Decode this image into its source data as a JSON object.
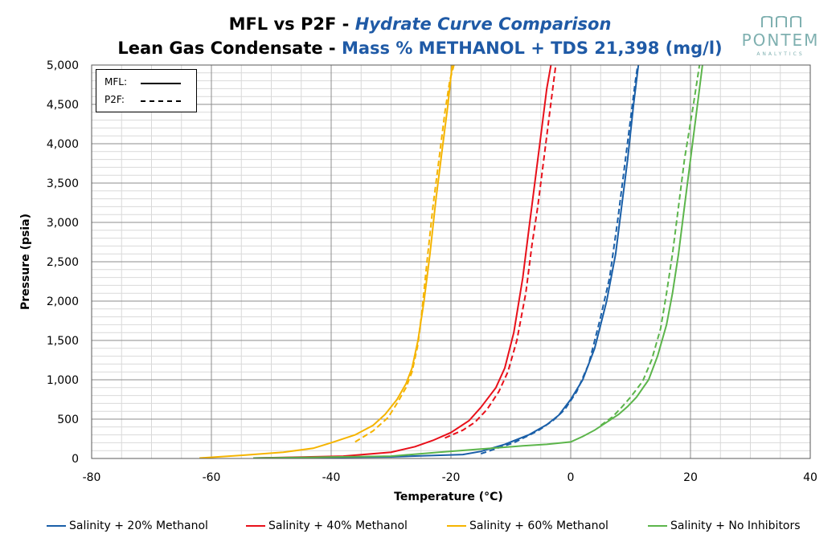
{
  "header": {
    "title_line1_part1": "MFL vs P2F - ",
    "title_line1_part2": "Hydrate Curve Comparison",
    "title_line2_part1": "Lean Gas Condensate - ",
    "title_line2_part2": "Mass % METHANOL + TDS 21,398 (mg/l)"
  },
  "logo": {
    "name": "PONTEM",
    "sub": "ANALYTICS",
    "color": "#7fb0b0"
  },
  "inset_legend": {
    "mfl_label": "MFL:",
    "p2f_label": "P2F:"
  },
  "colors": {
    "blue": "#1a5fa8",
    "red": "#e8101a",
    "yellow": "#f5b400",
    "green": "#5cb54b"
  },
  "chart_data": {
    "type": "line",
    "title": "MFL vs P2F - Hydrate Curve Comparison / Lean Gas Condensate - Mass % METHANOL + TDS 21,398 (mg/l)",
    "xlabel": "Temperature (°C)",
    "ylabel": "Pressure (psia)",
    "xlim": [
      -80,
      40
    ],
    "ylim": [
      0,
      5000
    ],
    "xticks": [
      -80,
      -60,
      -40,
      -20,
      0,
      20,
      40
    ],
    "yticks": [
      0,
      500,
      1000,
      1500,
      2000,
      2500,
      3000,
      3500,
      4000,
      4500,
      5000
    ],
    "xtick_labels": [
      "-80",
      "-60",
      "-40",
      "-20",
      "0",
      "20",
      "40"
    ],
    "ytick_labels": [
      "0",
      "500",
      "1,000",
      "1,500",
      "2,000",
      "2,500",
      "3,000",
      "3,500",
      "4,000",
      "4,500",
      "5,000"
    ],
    "grid": true,
    "legend_position": "bottom",
    "series": [
      {
        "name": "Salinity + 20% Methanol",
        "color": "#1a5fa8",
        "mfl": [
          [
            -53,
            5
          ],
          [
            -30,
            20
          ],
          [
            -18,
            50
          ],
          [
            -15,
            90
          ],
          [
            -11,
            180
          ],
          [
            -7,
            300
          ],
          [
            -4,
            430
          ],
          [
            -2,
            550
          ],
          [
            0,
            750
          ],
          [
            2,
            1000
          ],
          [
            4,
            1400
          ],
          [
            6,
            2000
          ],
          [
            7.5,
            2600
          ],
          [
            8.5,
            3200
          ],
          [
            9.5,
            3800
          ],
          [
            10.5,
            4500
          ],
          [
            11.3,
            5000
          ]
        ],
        "p2f": [
          [
            -15,
            60
          ],
          [
            -9.5,
            200
          ],
          [
            -5.5,
            350
          ],
          [
            -3,
            480
          ],
          [
            -1,
            620
          ],
          [
            1,
            850
          ],
          [
            3,
            1200
          ],
          [
            5,
            1800
          ],
          [
            6.5,
            2300
          ],
          [
            7.8,
            3000
          ],
          [
            8.8,
            3600
          ],
          [
            9.8,
            4200
          ],
          [
            10.8,
            4800
          ],
          [
            11.2,
            5000
          ]
        ]
      },
      {
        "name": "Salinity + 40% Methanol",
        "color": "#e8101a",
        "mfl": [
          [
            -53,
            5
          ],
          [
            -38,
            30
          ],
          [
            -30,
            80
          ],
          [
            -26,
            150
          ],
          [
            -23,
            230
          ],
          [
            -20,
            330
          ],
          [
            -17,
            480
          ],
          [
            -15,
            650
          ],
          [
            -12.5,
            900
          ],
          [
            -11,
            1150
          ],
          [
            -9.5,
            1600
          ],
          [
            -8,
            2300
          ],
          [
            -7,
            2900
          ],
          [
            -6,
            3500
          ],
          [
            -5,
            4100
          ],
          [
            -4,
            4700
          ],
          [
            -3.3,
            5000
          ]
        ],
        "p2f": [
          [
            -21,
            260
          ],
          [
            -18,
            360
          ],
          [
            -16,
            460
          ],
          [
            -14,
            620
          ],
          [
            -12,
            850
          ],
          [
            -10.5,
            1100
          ],
          [
            -9,
            1500
          ],
          [
            -7.5,
            2100
          ],
          [
            -6.5,
            2700
          ],
          [
            -5.5,
            3200
          ],
          [
            -4.5,
            3800
          ],
          [
            -3.5,
            4400
          ],
          [
            -2.5,
            5000
          ]
        ]
      },
      {
        "name": "Salinity + 60% Methanol",
        "color": "#f5b400",
        "mfl": [
          [
            -62,
            5
          ],
          [
            -55,
            40
          ],
          [
            -48,
            80
          ],
          [
            -43,
            130
          ],
          [
            -40,
            200
          ],
          [
            -36,
            300
          ],
          [
            -33,
            420
          ],
          [
            -31,
            560
          ],
          [
            -29,
            750
          ],
          [
            -27.5,
            950
          ],
          [
            -26.5,
            1150
          ],
          [
            -25.5,
            1500
          ],
          [
            -24.5,
            2000
          ],
          [
            -23.5,
            2600
          ],
          [
            -22.5,
            3300
          ],
          [
            -21.5,
            3900
          ],
          [
            -20.5,
            4500
          ],
          [
            -19.8,
            5000
          ]
        ],
        "p2f": [
          [
            -36,
            210
          ],
          [
            -33,
            350
          ],
          [
            -30.5,
            520
          ],
          [
            -29,
            700
          ],
          [
            -27.5,
            900
          ],
          [
            -26.5,
            1100
          ],
          [
            -25.5,
            1450
          ],
          [
            -24.8,
            1900
          ],
          [
            -24,
            2500
          ],
          [
            -23,
            3200
          ],
          [
            -22,
            3800
          ],
          [
            -21,
            4400
          ],
          [
            -20.2,
            4800
          ],
          [
            -19.5,
            5000
          ]
        ]
      },
      {
        "name": "Salinity + No Inhibitors",
        "color": "#5cb54b",
        "mfl": [
          [
            -53,
            5
          ],
          [
            -30,
            30
          ],
          [
            -22,
            80
          ],
          [
            -15,
            120
          ],
          [
            -8,
            160
          ],
          [
            -4,
            180
          ],
          [
            0,
            210
          ],
          [
            2,
            280
          ],
          [
            4,
            360
          ],
          [
            6,
            460
          ],
          [
            8,
            560
          ],
          [
            9.5,
            660
          ],
          [
            11,
            780
          ],
          [
            13,
            1000
          ],
          [
            14.5,
            1300
          ],
          [
            16,
            1700
          ],
          [
            17,
            2100
          ],
          [
            18,
            2600
          ],
          [
            19,
            3200
          ],
          [
            20,
            3800
          ],
          [
            21,
            4400
          ],
          [
            22,
            5000
          ]
        ],
        "p2f": [
          [
            5,
            420
          ],
          [
            7,
            530
          ],
          [
            8.5,
            650
          ],
          [
            10,
            780
          ],
          [
            12,
            980
          ],
          [
            13.5,
            1250
          ],
          [
            15,
            1650
          ],
          [
            16,
            2100
          ],
          [
            17,
            2600
          ],
          [
            18,
            3200
          ],
          [
            19,
            3800
          ],
          [
            20.5,
            4500
          ],
          [
            21.5,
            5000
          ]
        ]
      }
    ]
  }
}
